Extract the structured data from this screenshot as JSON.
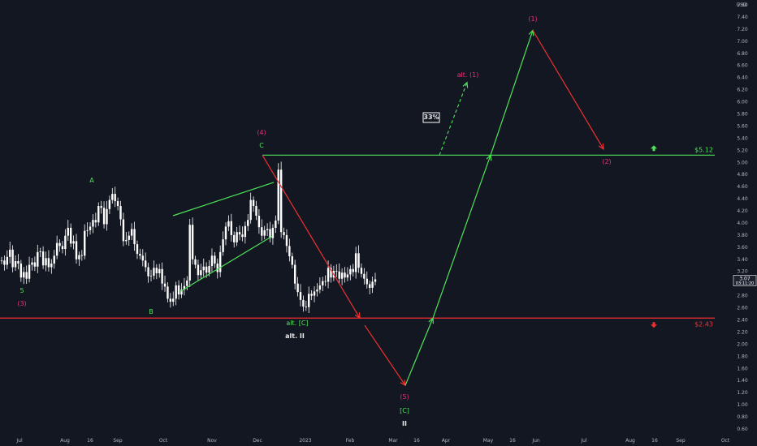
{
  "chart_data": {
    "type": "candlestick",
    "currency_label": "USD",
    "colors": {
      "background": "#131722",
      "candles": "#ffffff",
      "green": "#4fe35a",
      "red": "#f23030",
      "magenta": "#e8317b",
      "white_label": "#e8e8e8",
      "axis_text": "#b2b5be",
      "badge_bg": "#1e2230"
    },
    "y_axis": {
      "min": 0.6,
      "max": 7.6,
      "tick_labels": [
        "7.60",
        "7.40",
        "7.20",
        "7.00",
        "6.80",
        "6.60",
        "6.40",
        "6.20",
        "6.00",
        "5.80",
        "5.60",
        "5.40",
        "5.20",
        "5.00",
        "4.80",
        "4.60",
        "4.40",
        "4.20",
        "4.00",
        "3.80",
        "3.60",
        "3.40",
        "3.20",
        "3.00",
        "2.80",
        "2.60",
        "2.40",
        "2.20",
        "2.00",
        "1.80",
        "1.60",
        "1.40",
        "1.20",
        "1.00",
        "0.80",
        "0.60"
      ]
    },
    "x_axis": {
      "tick_labels": [
        "Jul",
        "Aug",
        "16",
        "Sep",
        "Oct",
        "Nov",
        "Dec",
        "2023",
        "Feb",
        "Mar",
        "16",
        "Apr",
        "May",
        "16",
        "Jun",
        "Jul",
        "Aug",
        "16",
        "Sep",
        "Oct"
      ]
    },
    "current_price": {
      "value": 3.07,
      "label": "3.07",
      "countdown": "03:11:20"
    },
    "price_series": [
      3.38,
      3.31,
      3.44,
      3.56,
      3.27,
      3.37,
      3.33,
      3.1,
      3.19,
      3.08,
      3.31,
      3.35,
      3.28,
      3.52,
      3.53,
      3.3,
      3.42,
      3.27,
      3.33,
      3.46,
      3.67,
      3.62,
      3.57,
      3.79,
      3.92,
      3.66,
      3.7,
      3.4,
      3.47,
      3.46,
      3.87,
      3.88,
      3.94,
      4.05,
      4.01,
      4.28,
      4.25,
      3.98,
      4.23,
      4.38,
      4.48,
      4.36,
      4.28,
      4.06,
      3.7,
      3.72,
      3.79,
      3.9,
      3.65,
      3.49,
      3.46,
      3.38,
      3.27,
      3.12,
      3.13,
      3.26,
      3.17,
      3.24,
      3.0,
      2.95,
      2.75,
      2.7,
      2.75,
      2.97,
      2.82,
      2.9,
      2.96,
      3.05,
      3.97,
      3.4,
      3.31,
      3.14,
      3.22,
      3.28,
      3.18,
      3.29,
      3.46,
      3.33,
      3.19,
      3.52,
      3.73,
      3.94,
      4.03,
      3.8,
      3.68,
      3.85,
      3.81,
      3.77,
      3.95,
      4.05,
      4.38,
      4.28,
      4.12,
      3.93,
      3.79,
      3.88,
      3.9,
      3.75,
      3.92,
      4.04,
      4.88,
      3.85,
      3.8,
      3.62,
      3.45,
      3.31,
      3.0,
      2.86,
      2.73,
      2.62,
      2.61,
      2.83,
      2.8,
      2.87,
      2.9,
      2.97,
      3.04,
      3.03,
      3.26,
      3.1,
      3.21,
      3.2,
      3.08,
      3.18,
      3.1,
      3.15,
      3.24,
      3.19,
      3.5,
      3.26,
      3.16,
      3.08,
      2.99,
      2.93,
      3.03,
      3.07
    ],
    "levels": [
      {
        "name": "upper-level",
        "value": 5.12,
        "label": "$5.12",
        "color": "green",
        "arrow": "up"
      },
      {
        "name": "lower-level",
        "value": 2.43,
        "label": "$2.43",
        "color": "red",
        "arrow": "down"
      }
    ],
    "wedge": {
      "upper": [
        [
          4.12,
          4.67
        ]
      ],
      "lower": [
        [
          2.87,
          3.78
        ]
      ]
    },
    "projection_path": [
      {
        "price": 5.12,
        "color": "red"
      },
      {
        "price": 2.43,
        "color": "red"
      },
      {
        "price": 1.32,
        "color": "red"
      },
      {
        "price": 2.43,
        "color": "green"
      },
      {
        "price": 5.12,
        "color": "green"
      },
      {
        "price": 7.18,
        "color": "green"
      },
      {
        "price": 5.22,
        "color": "red"
      }
    ],
    "dashed_projection": {
      "from": 5.12,
      "to": 6.32,
      "color": "green"
    },
    "annotations": [
      {
        "text": "(4)",
        "color": "magenta"
      },
      {
        "text": "C",
        "color": "green"
      },
      {
        "text": "A",
        "color": "green"
      },
      {
        "text": "B",
        "color": "green"
      },
      {
        "text": "5",
        "color": "green"
      },
      {
        "text": "(3)",
        "color": "magenta"
      },
      {
        "text": "alt. [C]",
        "color": "green"
      },
      {
        "text": "alt. II",
        "color": "white"
      },
      {
        "text": "(5)",
        "color": "magenta"
      },
      {
        "text": "[C]",
        "color": "green"
      },
      {
        "text": "II",
        "color": "white"
      },
      {
        "text": "(1)",
        "color": "magenta"
      },
      {
        "text": "(2)",
        "color": "magenta"
      },
      {
        "text": "alt. (1)",
        "color": "magenta"
      },
      {
        "text": "33%",
        "color": "white",
        "boxed": true
      }
    ]
  }
}
